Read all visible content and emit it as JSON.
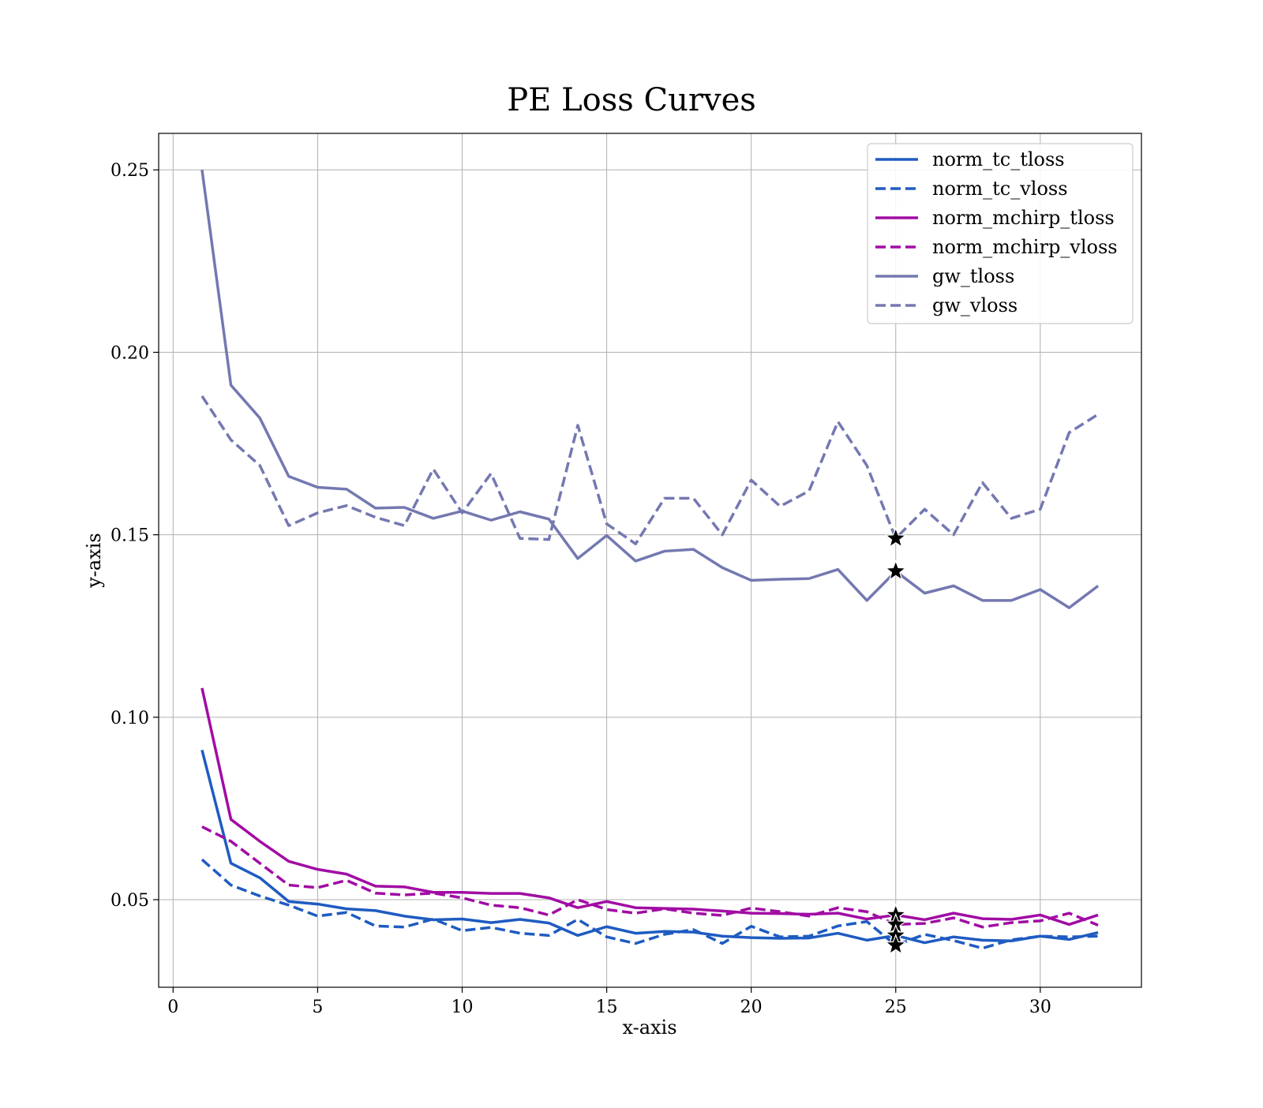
{
  "chart_data": {
    "type": "line",
    "title": "PE Loss Curves",
    "xlabel": "x-axis",
    "ylabel": "y-axis",
    "xlim": [
      -0.5,
      33.5
    ],
    "ylim": [
      0.026,
      0.26
    ],
    "xticks": [
      0,
      5,
      10,
      15,
      20,
      25,
      30
    ],
    "yticks": [
      0.05,
      0.1,
      0.15,
      0.2,
      0.25
    ],
    "xtick_labels": [
      "0",
      "5",
      "10",
      "15",
      "20",
      "25",
      "30"
    ],
    "ytick_labels": [
      "0.05",
      "0.10",
      "0.15",
      "0.20",
      "0.25"
    ],
    "grid": true,
    "legend_position": "top-right",
    "x": [
      1,
      2,
      3,
      4,
      5,
      6,
      7,
      8,
      9,
      10,
      11,
      12,
      13,
      14,
      15,
      16,
      17,
      18,
      19,
      20,
      21,
      22,
      23,
      24,
      25,
      26,
      27,
      28,
      29,
      30,
      31,
      32
    ],
    "series": [
      {
        "name": "norm_tc_tloss",
        "color": "#1f5bc1",
        "dash": "solid",
        "values": [
          0.091,
          0.06,
          0.056,
          0.0495,
          0.0488,
          0.0475,
          0.047,
          0.0455,
          0.0445,
          0.0447,
          0.0437,
          0.0446,
          0.0436,
          0.0402,
          0.0426,
          0.0408,
          0.0413,
          0.0411,
          0.04,
          0.0396,
          0.0394,
          0.0395,
          0.0408,
          0.0389,
          0.0402,
          0.0382,
          0.0398,
          0.0389,
          0.0387,
          0.04,
          0.0391,
          0.041
        ]
      },
      {
        "name": "norm_tc_vloss",
        "color": "#1f5bc1",
        "dash": "dashed",
        "values": [
          0.061,
          0.054,
          0.051,
          0.0485,
          0.0455,
          0.0465,
          0.0428,
          0.0425,
          0.0447,
          0.0415,
          0.0424,
          0.0408,
          0.0402,
          0.0446,
          0.0398,
          0.038,
          0.0405,
          0.0418,
          0.038,
          0.0427,
          0.0398,
          0.04,
          0.0428,
          0.044,
          0.0375,
          0.0405,
          0.0388,
          0.0367,
          0.039,
          0.04,
          0.0398,
          0.04
        ]
      },
      {
        "name": "norm_mchirp_tloss",
        "color": "#a10ca4",
        "dash": "solid",
        "values": [
          0.108,
          0.072,
          0.066,
          0.0605,
          0.0583,
          0.057,
          0.0537,
          0.0535,
          0.052,
          0.052,
          0.0517,
          0.0517,
          0.0505,
          0.0478,
          0.0495,
          0.0478,
          0.0476,
          0.0474,
          0.0469,
          0.0463,
          0.0462,
          0.046,
          0.0463,
          0.0447,
          0.0458,
          0.0445,
          0.0463,
          0.0448,
          0.0446,
          0.0458,
          0.0432,
          0.0458
        ]
      },
      {
        "name": "norm_mchirp_vloss",
        "color": "#a10ca4",
        "dash": "dashed",
        "values": [
          0.07,
          0.066,
          0.06,
          0.054,
          0.0533,
          0.0553,
          0.0518,
          0.0513,
          0.0518,
          0.0505,
          0.0485,
          0.0478,
          0.0458,
          0.05,
          0.0473,
          0.0463,
          0.0475,
          0.0463,
          0.0457,
          0.0477,
          0.0467,
          0.0455,
          0.0478,
          0.0467,
          0.0432,
          0.0435,
          0.045,
          0.0425,
          0.0437,
          0.0442,
          0.0463,
          0.043
        ]
      },
      {
        "name": "gw_tloss",
        "color": "#7478b1",
        "dash": "solid",
        "values": [
          0.25,
          0.191,
          0.182,
          0.166,
          0.163,
          0.1625,
          0.1573,
          0.1575,
          0.1545,
          0.1565,
          0.154,
          0.1563,
          0.1543,
          0.1435,
          0.1498,
          0.1428,
          0.1455,
          0.146,
          0.141,
          0.1375,
          0.1378,
          0.138,
          0.1405,
          0.132,
          0.14,
          0.134,
          0.136,
          0.132,
          0.132,
          0.135,
          0.13,
          0.136
        ]
      },
      {
        "name": "gw_vloss",
        "color": "#7478b1",
        "dash": "dashed",
        "values": [
          0.188,
          0.176,
          0.169,
          0.1525,
          0.156,
          0.158,
          0.1548,
          0.1525,
          0.168,
          0.156,
          0.1668,
          0.149,
          0.1487,
          0.18,
          0.153,
          0.1475,
          0.16,
          0.16,
          0.15,
          0.165,
          0.1578,
          0.162,
          0.181,
          0.169,
          0.149,
          0.157,
          0.15,
          0.1643,
          0.1545,
          0.157,
          0.178,
          0.183
        ]
      }
    ],
    "markers": [
      {
        "x": 25,
        "y": 0.149,
        "symbol": "star"
      },
      {
        "x": 25,
        "y": 0.14,
        "symbol": "star"
      },
      {
        "x": 25,
        "y": 0.0458,
        "symbol": "star"
      },
      {
        "x": 25,
        "y": 0.0432,
        "symbol": "star"
      },
      {
        "x": 25,
        "y": 0.0402,
        "symbol": "star"
      },
      {
        "x": 25,
        "y": 0.0375,
        "symbol": "star"
      }
    ]
  }
}
